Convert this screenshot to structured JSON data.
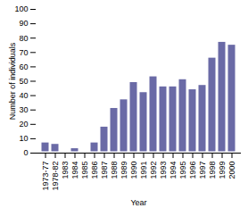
{
  "chart_data": {
    "type": "bar",
    "x_label": "Year",
    "y_label": "Number of individuals",
    "categories": [
      "1973-77",
      "1978-82",
      "1983",
      "1984",
      "1985",
      "1986",
      "1987",
      "1988",
      "1989",
      "1990",
      "1991",
      "1992",
      "1993",
      "1994",
      "1995",
      "1996",
      "1997",
      "1998",
      "1999",
      "2000"
    ],
    "values": [
      8,
      7,
      1,
      4,
      0,
      8,
      19,
      32,
      38,
      50,
      43,
      54,
      47,
      47,
      52,
      45,
      48,
      67,
      78,
      76
    ],
    "color": "#6a6aa6",
    "ylim": [
      0,
      100
    ],
    "yticks": [
      0,
      10,
      20,
      30,
      40,
      50,
      60,
      70,
      80,
      90,
      100
    ],
    "grid": false
  }
}
